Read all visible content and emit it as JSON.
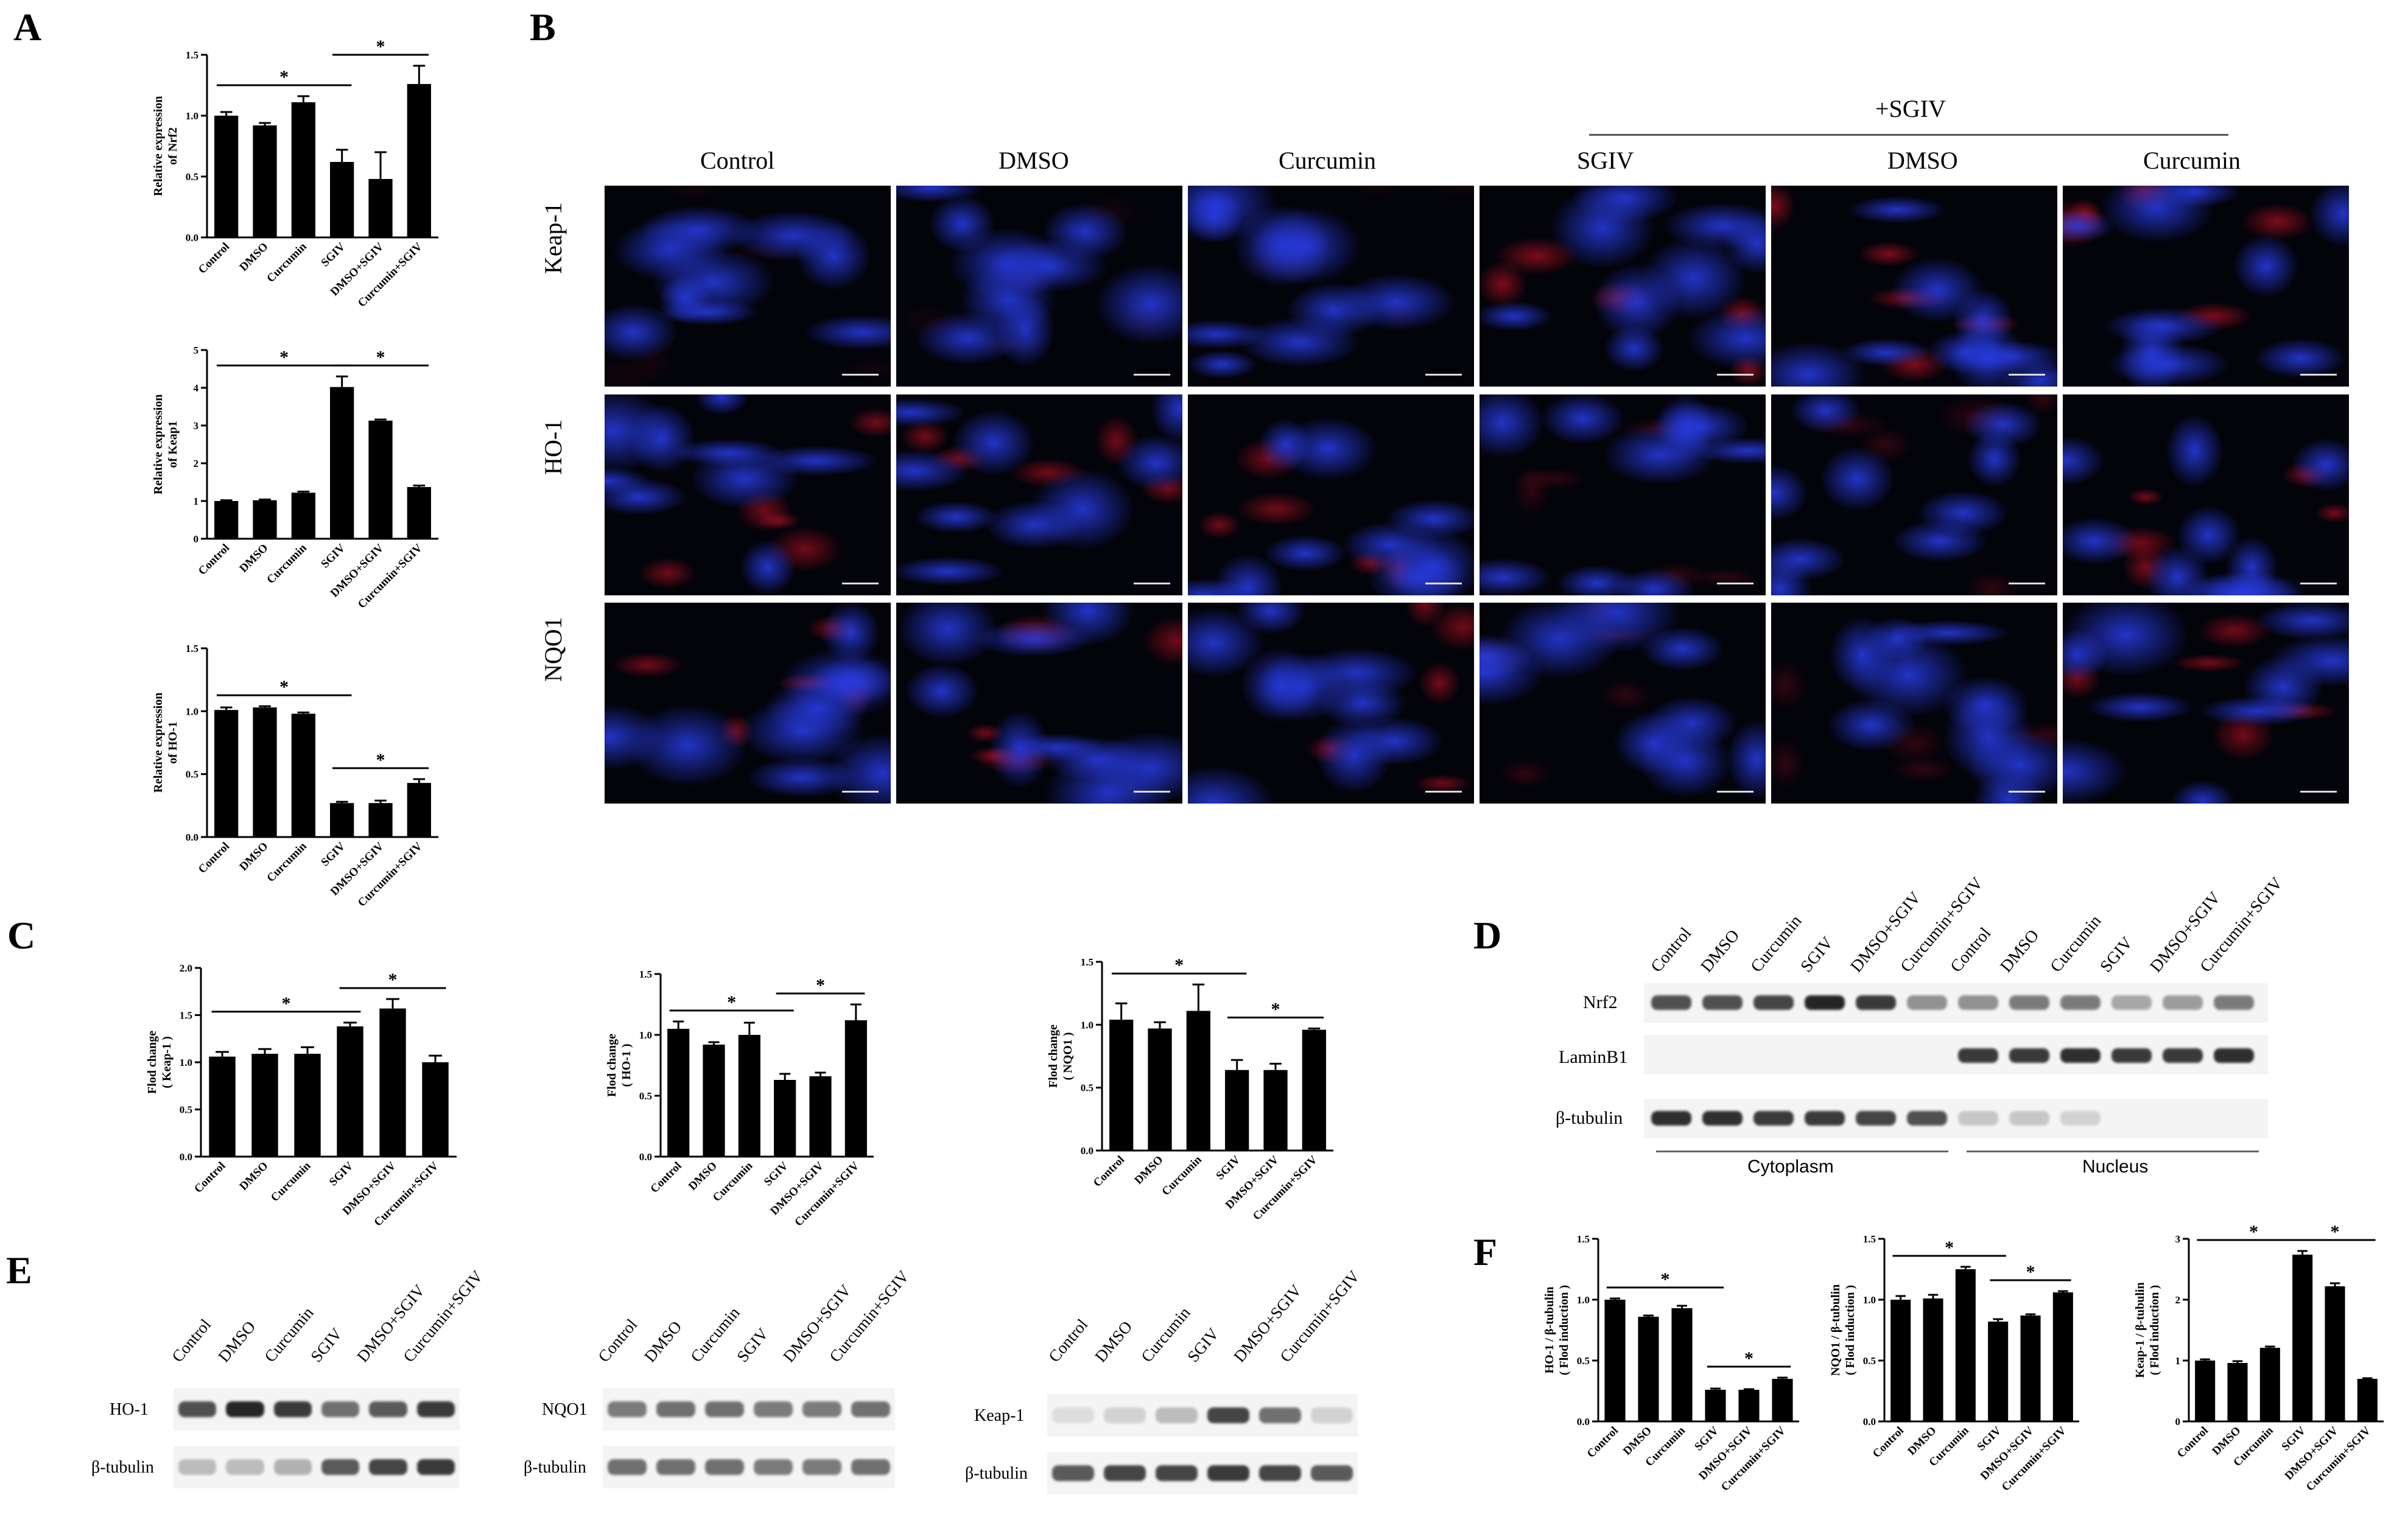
{
  "letters": {
    "a": "A",
    "b": "B",
    "c": "C",
    "d": "D",
    "e": "E",
    "f": "F"
  },
  "groups6": [
    "Control",
    "DMSO",
    "Curcumin",
    "SGIV",
    "DMSO+SGIV",
    "Curcumin+SGIV"
  ],
  "star": "*",
  "charts": {
    "A1": {
      "type": "bar",
      "ylabel": [
        "Relative expression",
        "of Nrf2"
      ],
      "categories": [
        "Control",
        "DMSO",
        "Curcumin",
        "SGIV",
        "DMSO+SGIV",
        "Curcumin+SGIV"
      ],
      "values": [
        1.0,
        0.92,
        1.11,
        0.62,
        0.48,
        1.26
      ],
      "errors": [
        0.03,
        0.02,
        0.05,
        0.1,
        0.22,
        0.15
      ],
      "ylim": [
        0,
        1.5
      ],
      "ticks": [
        0,
        0.5,
        1.0,
        1.5
      ],
      "tick_labels": [
        "0.0",
        "0.5",
        "1.0",
        "1.5"
      ],
      "sig": [
        [
          0,
          3
        ],
        [
          3,
          5
        ]
      ]
    },
    "A2": {
      "type": "bar",
      "ylabel": [
        "Relative expression",
        "of Keap1"
      ],
      "categories": [
        "Control",
        "DMSO",
        "Curcumin",
        "SGIV",
        "DMSO+SGIV",
        "Curcumin+SGIV"
      ],
      "values": [
        1.0,
        1.02,
        1.22,
        4.02,
        3.13,
        1.37
      ],
      "errors": [
        0.02,
        0.02,
        0.03,
        0.28,
        0.03,
        0.04
      ],
      "ylim": [
        0,
        5
      ],
      "ticks": [
        0,
        1,
        2,
        3,
        4,
        5
      ],
      "tick_labels": [
        "0",
        "1",
        "2",
        "3",
        "4",
        "5"
      ],
      "sig": [
        [
          0,
          3
        ],
        [
          3,
          5
        ]
      ]
    },
    "A3": {
      "type": "bar",
      "ylabel": [
        "Relative expression",
        "of HO-1"
      ],
      "categories": [
        "Control",
        "DMSO",
        "Curcumin",
        "SGIV",
        "DMSO+SGIV",
        "Curcumin+SGIV"
      ],
      "values": [
        1.01,
        1.03,
        0.98,
        0.27,
        0.27,
        0.43
      ],
      "errors": [
        0.02,
        0.01,
        0.01,
        0.01,
        0.02,
        0.03
      ],
      "ylim": [
        0,
        1.5
      ],
      "ticks": [
        0,
        0.5,
        1.0,
        1.5
      ],
      "tick_labels": [
        "0.0",
        "0.5",
        "1.0",
        "1.5"
      ],
      "sig": [
        [
          0,
          3
        ],
        [
          3,
          5
        ]
      ]
    },
    "C1": {
      "type": "bar",
      "ylabel": [
        "Flod change",
        "( Keap-1 )"
      ],
      "categories": [
        "Control",
        "DMSO",
        "Curcumin",
        "SGIV",
        "DMSO+SGIV",
        "Curcumin+SGIV"
      ],
      "values": [
        1.06,
        1.09,
        1.09,
        1.38,
        1.57,
        1.0
      ],
      "errors": [
        0.05,
        0.05,
        0.07,
        0.04,
        0.1,
        0.07
      ],
      "ylim": [
        0,
        2
      ],
      "ticks": [
        0,
        0.5,
        1.0,
        1.5,
        2.0
      ],
      "tick_labels": [
        "0.0",
        "0.5",
        "1.0",
        "1.5",
        "2.0"
      ],
      "sig": [
        [
          0,
          3
        ],
        [
          3,
          5
        ]
      ]
    },
    "C2": {
      "type": "bar",
      "ylabel": [
        "Flod change",
        "( HO-1 )"
      ],
      "categories": [
        "Control",
        "DMSO",
        "Curcumin",
        "SGIV",
        "DMSO+SGIV",
        "Curcumin+SGIV"
      ],
      "values": [
        1.05,
        0.92,
        1.0,
        0.63,
        0.66,
        1.12
      ],
      "errors": [
        0.06,
        0.02,
        0.1,
        0.05,
        0.03,
        0.13
      ],
      "ylim": [
        0,
        1.5
      ],
      "ticks": [
        0,
        0.5,
        1.0,
        1.5
      ],
      "tick_labels": [
        "0.0",
        "0.5",
        "1.0",
        "1.5"
      ],
      "sig": [
        [
          0,
          3
        ],
        [
          3,
          5
        ]
      ]
    },
    "C3": {
      "type": "bar",
      "ylabel": [
        "Flod change",
        "( NQO1 )"
      ],
      "categories": [
        "Control",
        "DMSO",
        "Curcumin",
        "SGIV",
        "DMSO+SGIV",
        "Curcumin+SGIV"
      ],
      "values": [
        1.04,
        0.97,
        1.11,
        0.64,
        0.64,
        0.96
      ],
      "errors": [
        0.13,
        0.05,
        0.21,
        0.08,
        0.05,
        0.01
      ],
      "ylim": [
        0,
        1.5
      ],
      "ticks": [
        0,
        0.5,
        1.0,
        1.5
      ],
      "tick_labels": [
        "0.0",
        "0.5",
        "1.0",
        "1.5"
      ],
      "sig": [
        [
          0,
          3
        ],
        [
          3,
          5
        ]
      ]
    },
    "F1": {
      "type": "bar",
      "ylabel": [
        "HO-1 / β-tubulin",
        "( Flod induction )"
      ],
      "categories": [
        "Control",
        "DMSO",
        "Curcumin",
        "SGIV",
        "DMSO+SGIV",
        "Curcumin+SGIV"
      ],
      "values": [
        1.0,
        0.86,
        0.93,
        0.26,
        0.26,
        0.35
      ],
      "errors": [
        0.01,
        0.01,
        0.02,
        0.01,
        0.005,
        0.01
      ],
      "ylim": [
        0,
        1.5
      ],
      "ticks": [
        0,
        0.5,
        1.0,
        1.5
      ],
      "tick_labels": [
        "0.0",
        "0.5",
        "1.0",
        "1.5"
      ],
      "sig": [
        [
          0,
          3
        ],
        [
          3,
          5
        ]
      ]
    },
    "F2": {
      "type": "bar",
      "ylabel": [
        "NQO1 / β-tubulin",
        "( Flod induction )"
      ],
      "categories": [
        "Control",
        "DMSO",
        "Curcumin",
        "SGIV",
        "DMSO+SGIV",
        "Curcumin+SGIV"
      ],
      "values": [
        1.0,
        1.01,
        1.25,
        0.82,
        0.87,
        1.06
      ],
      "errors": [
        0.03,
        0.03,
        0.02,
        0.02,
        0.01,
        0.01
      ],
      "ylim": [
        0,
        1.5
      ],
      "ticks": [
        0,
        0.5,
        1.0,
        1.5
      ],
      "tick_labels": [
        "0.0",
        "0.5",
        "1.0",
        "1.5"
      ],
      "sig": [
        [
          0,
          3
        ],
        [
          3,
          5
        ]
      ]
    },
    "F3": {
      "type": "bar",
      "ylabel": [
        "Keap-1 / β-tubulin",
        "( Flod induction )"
      ],
      "categories": [
        "Control",
        "DMSO",
        "Curcumin",
        "SGIV",
        "DMSO+SGIV",
        "Curcumin+SGIV"
      ],
      "values": [
        1.0,
        0.96,
        1.21,
        2.74,
        2.22,
        0.7
      ],
      "errors": [
        0.02,
        0.03,
        0.02,
        0.06,
        0.05,
        0.01
      ],
      "ylim": [
        0,
        3
      ],
      "ticks": [
        0,
        1,
        2,
        3
      ],
      "tick_labels": [
        "0",
        "1",
        "2",
        "3"
      ],
      "sig": [
        [
          0,
          3
        ],
        [
          3,
          5
        ]
      ]
    }
  },
  "panelB": {
    "sgiv_header": "+SGIV",
    "columns": [
      "Control",
      "DMSO",
      "Curcumin",
      "SGIV",
      "DMSO",
      "Curcumin"
    ],
    "rows": [
      "Keap-1",
      "HO-1",
      "NQO1"
    ]
  },
  "panelD": {
    "lanes": [
      "Control",
      "DMSO",
      "Curcumin",
      "SGIV",
      "DMSO+SGIV",
      "Curcumin+SGIV",
      "Control",
      "DMSO",
      "Curcumin",
      "SGIV",
      "DMSO+SGIV",
      "Curcumin+SGIV"
    ],
    "rows": [
      "Nrf2",
      "LaminB1",
      "β-tubulin"
    ],
    "fractions": [
      "Cytoplasm",
      "Nucleus"
    ]
  },
  "panelE": {
    "lanes": [
      "Control",
      "DMSO",
      "Curcumin",
      "SGIV",
      "DMSO+SGIV",
      "Curcumin+SGIV"
    ],
    "blots": [
      {
        "target": "HO-1",
        "loading": "β-tubulin"
      },
      {
        "target": "NQO1",
        "loading": "β-tubulin"
      },
      {
        "target": "Keap-1",
        "loading": "β-tubulin"
      }
    ]
  }
}
